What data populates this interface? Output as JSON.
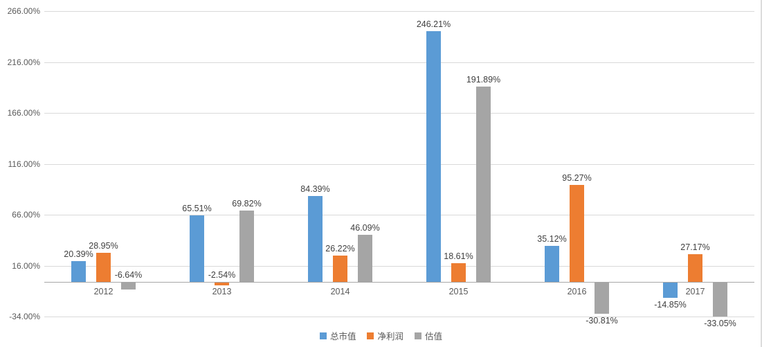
{
  "chart_data": {
    "type": "bar",
    "title": "",
    "xlabel": "",
    "ylabel": "",
    "categories": [
      "2012",
      "2013",
      "2014",
      "2015",
      "2016",
      "2017"
    ],
    "series": [
      {
        "id": "market-cap",
        "name": "总市值",
        "color": "#5B9BD5",
        "values": [
          20.39,
          65.51,
          84.39,
          246.21,
          35.12,
          -14.85
        ],
        "labels": [
          "20.39%",
          "65.51%",
          "84.39%",
          "246.21%",
          "35.12%",
          "-14.85%"
        ]
      },
      {
        "id": "net-profit",
        "name": "净利润",
        "color": "#ED7D31",
        "values": [
          28.95,
          -2.54,
          26.22,
          18.61,
          95.27,
          27.17
        ],
        "labels": [
          "28.95%",
          "-2.54%",
          "26.22%",
          "18.61%",
          "95.27%",
          "27.17%"
        ]
      },
      {
        "id": "valuation",
        "name": "估值",
        "color": "#A5A5A5",
        "values": [
          -6.64,
          69.82,
          46.09,
          191.89,
          -30.81,
          -33.05
        ],
        "labels": [
          "-6.64%",
          "69.82%",
          "46.09%",
          "191.89%",
          "-30.81%",
          "-33.05%"
        ]
      }
    ],
    "ylim": [
      -34,
      266
    ],
    "yticks": [
      266,
      216,
      166,
      116,
      66,
      16,
      -34
    ],
    "ytick_labels": [
      "266.00%",
      "216.00%",
      "166.00%",
      "116.00%",
      "66.00%",
      "16.00%",
      "-34.00%"
    ],
    "grid": true,
    "legend_position": "bottom"
  },
  "colors": {
    "gridline": "#d9d9d9",
    "axis_line": "#a6a6a6",
    "tick_text": "#595959",
    "label_text": "#404040",
    "background": "#ffffff"
  }
}
